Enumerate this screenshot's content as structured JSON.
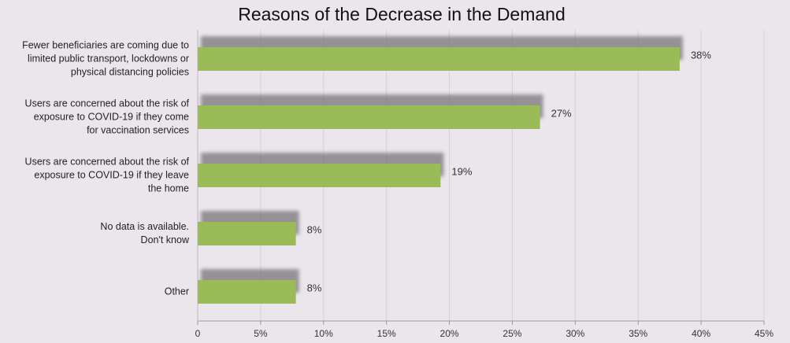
{
  "chart_data": {
    "type": "bar",
    "orientation": "horizontal",
    "title": "Reasons of the Decrease in the Demand",
    "categories": [
      "Fewer beneficiaries are coming due to\nlimited public transport, lockdowns or\nphysical distancing policies",
      "Users are concerned about the risk of\nexposure to COVID-19 if they come\nfor vaccination services",
      "Users are concerned about the risk of\nexposure to COVID-19 if they leave\nthe home",
      "No data is available.\nDon't know",
      "Other"
    ],
    "values": [
      38.3,
      27.2,
      19.3,
      7.8,
      7.8
    ],
    "value_labels": [
      "38%",
      "27%",
      "19%",
      "8%",
      "8%"
    ],
    "color": "#9bbb59",
    "xlim": [
      0,
      45
    ],
    "xticks": [
      0,
      {
        "value": 5,
        "label": "5%"
      },
      {
        "value": 10,
        "label": "10%"
      },
      {
        "value": 15,
        "label": "15%"
      },
      {
        "value": 20,
        "label": "20%"
      },
      {
        "value": 25,
        "label": "25%"
      },
      {
        "value": 30,
        "label": "30%"
      },
      {
        "value": 35,
        "label": "35%"
      },
      {
        "value": 40,
        "label": "40%"
      },
      {
        "value": 45,
        "label": "45%"
      }
    ],
    "grid": true
  }
}
